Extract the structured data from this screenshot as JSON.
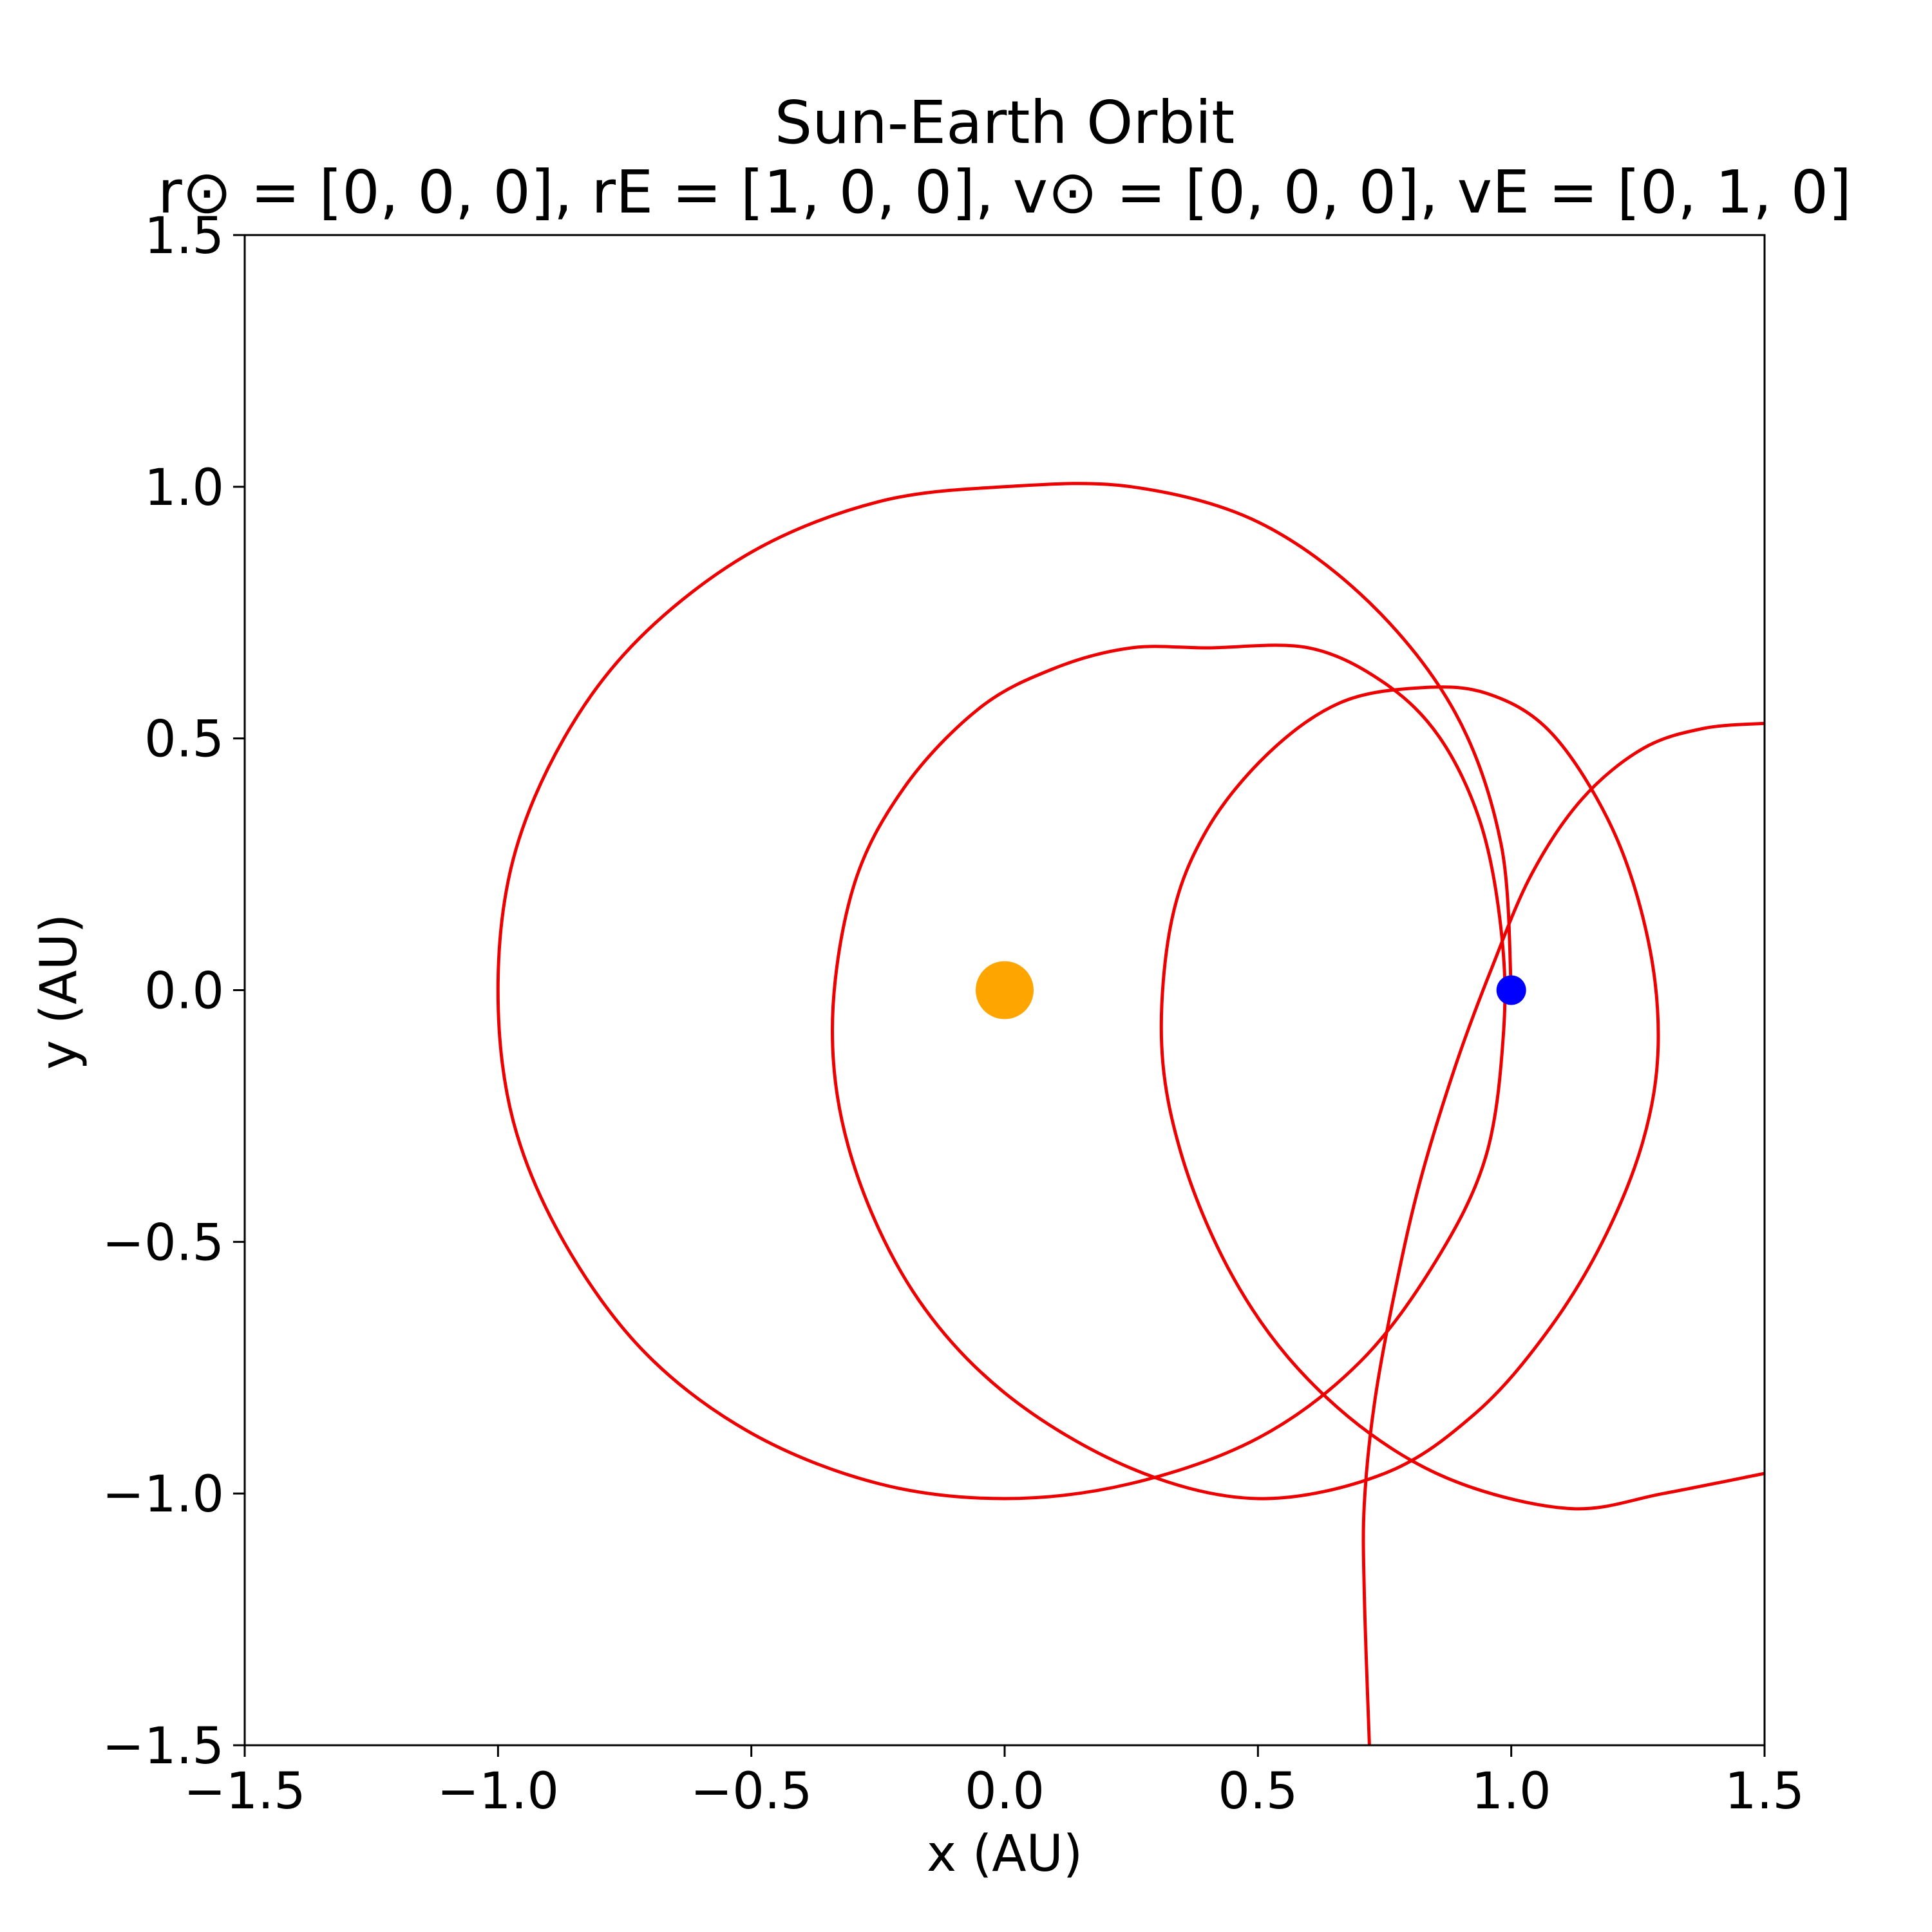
{
  "chart_data": {
    "type": "line",
    "title": "Sun-Earth Orbit",
    "subtitle": "r⊙ = [0, 0, 0], rE = [1, 0, 0], v⊙ = [0, 0, 0], vE = [0, 1, 0]",
    "xlabel": "x (AU)",
    "ylabel": "y (AU)",
    "xlim": [
      -1.5,
      1.5
    ],
    "ylim": [
      -1.5,
      1.5
    ],
    "xticks": [
      -1.5,
      -1.0,
      -0.5,
      0.0,
      0.5,
      1.0,
      1.5
    ],
    "yticks": [
      -1.5,
      -1.0,
      -0.5,
      0.0,
      0.5,
      1.0,
      1.5
    ],
    "xtick_labels": [
      "−1.5",
      "−1.0",
      "−0.5",
      "0.0",
      "0.5",
      "1.0",
      "1.5"
    ],
    "ytick_labels": [
      "−1.5",
      "−1.0",
      "−0.5",
      "0.0",
      "0.5",
      "1.0",
      "1.5"
    ],
    "grid": false,
    "colors": {
      "orbit": "#ee0000",
      "sun": "#ffa500",
      "earth": "#0000ff"
    },
    "series": [
      {
        "kind": "orbit-path",
        "color": "#ee0000",
        "points": [
          [
            1.0,
            0.0
          ],
          [
            0.98,
            0.29
          ],
          [
            0.89,
            0.55
          ],
          [
            0.72,
            0.77
          ],
          [
            0.5,
            0.93
          ],
          [
            0.25,
            1.0
          ],
          [
            0.0,
            1.0
          ],
          [
            -0.25,
            0.97
          ],
          [
            -0.5,
            0.87
          ],
          [
            -0.72,
            0.7
          ],
          [
            -0.87,
            0.5
          ],
          [
            -0.97,
            0.26
          ],
          [
            -1.0,
            0.0
          ],
          [
            -0.97,
            -0.26
          ],
          [
            -0.87,
            -0.5
          ],
          [
            -0.71,
            -0.72
          ],
          [
            -0.5,
            -0.88
          ],
          [
            -0.25,
            -0.98
          ],
          [
            0.0,
            -1.01
          ],
          [
            0.25,
            -0.98
          ],
          [
            0.5,
            -0.89
          ],
          [
            0.7,
            -0.74
          ],
          [
            0.85,
            -0.54
          ],
          [
            0.95,
            -0.33
          ],
          [
            0.985,
            -0.08
          ],
          [
            0.98,
            0.12
          ],
          [
            0.94,
            0.33
          ],
          [
            0.86,
            0.5
          ],
          [
            0.75,
            0.61
          ],
          [
            0.6,
            0.68
          ],
          [
            0.4,
            0.68
          ],
          [
            0.25,
            0.68
          ],
          [
            0.1,
            0.64
          ],
          [
            -0.05,
            0.56
          ],
          [
            -0.2,
            0.4
          ],
          [
            -0.3,
            0.2
          ],
          [
            -0.34,
            -0.08
          ],
          [
            -0.3,
            -0.34
          ],
          [
            -0.18,
            -0.6
          ],
          [
            0.0,
            -0.8
          ],
          [
            0.25,
            -0.95
          ],
          [
            0.5,
            -1.01
          ],
          [
            0.75,
            -0.96
          ],
          [
            0.93,
            -0.84
          ],
          [
            1.07,
            -0.68
          ],
          [
            1.18,
            -0.5
          ],
          [
            1.26,
            -0.3
          ],
          [
            1.29,
            -0.11
          ],
          [
            1.27,
            0.1
          ],
          [
            1.2,
            0.32
          ],
          [
            1.08,
            0.51
          ],
          [
            0.95,
            0.59
          ],
          [
            0.81,
            0.6
          ],
          [
            0.66,
            0.57
          ],
          [
            0.52,
            0.47
          ],
          [
            0.4,
            0.32
          ],
          [
            0.33,
            0.14
          ],
          [
            0.31,
            -0.11
          ],
          [
            0.35,
            -0.33
          ],
          [
            0.44,
            -0.55
          ],
          [
            0.56,
            -0.73
          ],
          [
            0.72,
            -0.88
          ],
          [
            0.9,
            -0.98
          ],
          [
            1.12,
            -1.03
          ],
          [
            1.3,
            -1.0
          ],
          [
            1.5,
            -0.96
          ]
        ]
      },
      {
        "kind": "orbit-path",
        "color": "#ee0000",
        "points": [
          [
            1.5,
            0.53
          ],
          [
            1.38,
            0.52
          ],
          [
            1.26,
            0.48
          ],
          [
            1.14,
            0.38
          ],
          [
            1.04,
            0.23
          ],
          [
            0.96,
            0.04
          ],
          [
            0.89,
            -0.15
          ],
          [
            0.82,
            -0.38
          ],
          [
            0.77,
            -0.6
          ],
          [
            0.73,
            -0.82
          ],
          [
            0.71,
            -1.02
          ],
          [
            0.71,
            -1.2
          ],
          [
            0.72,
            -1.5
          ]
        ]
      }
    ],
    "markers": [
      {
        "name": "Sun",
        "x": 0.0,
        "y": 0.0,
        "color": "#ffa500",
        "size": "large"
      },
      {
        "name": "Earth",
        "x": 1.0,
        "y": 0.0,
        "color": "#0000ff",
        "size": "small"
      }
    ]
  }
}
